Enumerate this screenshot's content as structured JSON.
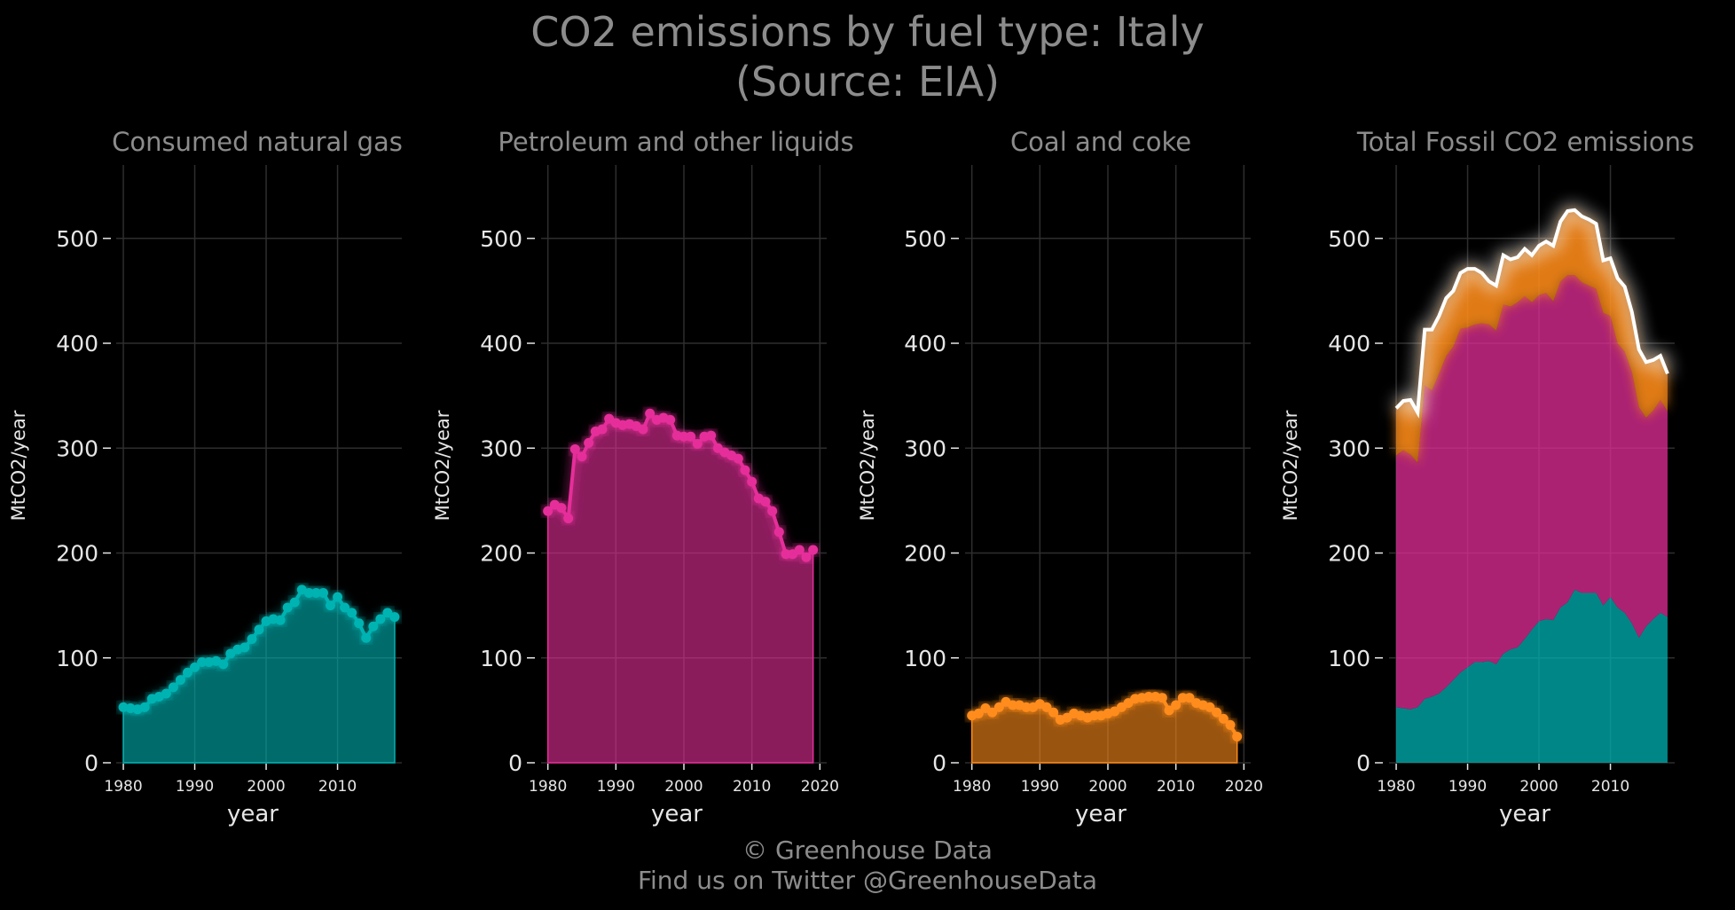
{
  "title_line1": "CO2 emissions by fuel type: Italy",
  "title_line2": "(Source: EIA)",
  "footer_line1": "© Greenhouse Data",
  "footer_line2": "Find us on Twitter @GreenhouseData",
  "colors": {
    "gas": "#00b3b3",
    "petroleum": "#e62e9a",
    "coal": "#ff8c1a",
    "total": "#ffffff",
    "grid": "#2e2e2e"
  },
  "chart_data": [
    {
      "type": "area",
      "title": "Consumed natural gas",
      "xlabel": "year",
      "ylabel": "MtCO2/year",
      "ylim": [
        0,
        570
      ],
      "xlim": [
        1979,
        2019
      ],
      "xticks": [
        1980,
        1990,
        2000,
        2010
      ],
      "yticks": [
        0,
        100,
        200,
        300,
        400,
        500
      ],
      "grid": true,
      "series": [
        {
          "x": [
            1980,
            1981,
            1982,
            1983,
            1984,
            1985,
            1986,
            1987,
            1988,
            1989,
            1990,
            1991,
            1992,
            1993,
            1994,
            1995,
            1996,
            1997,
            1998,
            1999,
            2000,
            2001,
            2002,
            2003,
            2004,
            2005,
            2006,
            2007,
            2008,
            2009,
            2010,
            2011,
            2012,
            2013,
            2014,
            2015,
            2016,
            2017,
            2018
          ],
          "y": [
            53,
            52,
            51,
            53,
            61,
            63,
            66,
            72,
            79,
            86,
            91,
            96,
            96,
            97,
            94,
            104,
            108,
            110,
            118,
            127,
            135,
            137,
            136,
            148,
            153,
            165,
            162,
            162,
            162,
            150,
            158,
            148,
            143,
            133,
            119,
            130,
            137,
            143,
            139
          ]
        }
      ]
    },
    {
      "type": "area",
      "title": "Petroleum and other liquids",
      "xlabel": "year",
      "ylabel": "MtCO2/year",
      "ylim": [
        0,
        570
      ],
      "xlim": [
        1979,
        2021
      ],
      "xticks": [
        1980,
        1990,
        2000,
        2010,
        2020
      ],
      "yticks": [
        0,
        100,
        200,
        300,
        400,
        500
      ],
      "grid": true,
      "series": [
        {
          "x": [
            1980,
            1981,
            1982,
            1983,
            1984,
            1985,
            1986,
            1987,
            1988,
            1989,
            1990,
            1991,
            1992,
            1993,
            1994,
            1995,
            1996,
            1997,
            1998,
            1999,
            2000,
            2001,
            2002,
            2003,
            2004,
            2005,
            2006,
            2007,
            2008,
            2009,
            2010,
            2011,
            2012,
            2013,
            2014,
            2015,
            2016,
            2017,
            2018,
            2019
          ],
          "y": [
            240,
            246,
            243,
            233,
            299,
            292,
            305,
            316,
            318,
            328,
            324,
            322,
            323,
            321,
            318,
            333,
            327,
            329,
            327,
            312,
            311,
            311,
            304,
            311,
            312,
            300,
            296,
            293,
            290,
            279,
            268,
            252,
            249,
            240,
            220,
            199,
            199,
            203,
            196,
            203
          ]
        }
      ]
    },
    {
      "type": "area",
      "title": "Coal and coke",
      "xlabel": "year",
      "ylabel": "MtCO2/year",
      "ylim": [
        0,
        570
      ],
      "xlim": [
        1979,
        2021
      ],
      "xticks": [
        1980,
        1990,
        2000,
        2010,
        2020
      ],
      "yticks": [
        0,
        100,
        200,
        300,
        400,
        500
      ],
      "grid": true,
      "series": [
        {
          "x": [
            1980,
            1981,
            1982,
            1983,
            1984,
            1985,
            1986,
            1987,
            1988,
            1989,
            1990,
            1991,
            1992,
            1993,
            1994,
            1995,
            1996,
            1997,
            1998,
            1999,
            2000,
            2001,
            2002,
            2003,
            2004,
            2005,
            2006,
            2007,
            2008,
            2009,
            2010,
            2011,
            2012,
            2013,
            2014,
            2015,
            2016,
            2017,
            2018,
            2019
          ],
          "y": [
            45,
            47,
            52,
            48,
            53,
            58,
            55,
            55,
            53,
            53,
            56,
            53,
            48,
            41,
            43,
            47,
            45,
            43,
            45,
            45,
            47,
            49,
            53,
            57,
            61,
            62,
            63,
            63,
            62,
            50,
            55,
            62,
            62,
            57,
            55,
            53,
            48,
            42,
            36,
            25
          ]
        }
      ]
    },
    {
      "type": "area",
      "title": "Total Fossil CO2 emissions",
      "xlabel": "year",
      "ylabel": "MtCO2/year",
      "ylim": [
        0,
        570
      ],
      "xlim": [
        1979,
        2019
      ],
      "xticks": [
        1980,
        1990,
        2000,
        2010
      ],
      "yticks": [
        0,
        100,
        200,
        300,
        400,
        500
      ],
      "grid": true,
      "stacked": true,
      "x": [
        1980,
        1981,
        1982,
        1983,
        1984,
        1985,
        1986,
        1987,
        1988,
        1989,
        1990,
        1991,
        1992,
        1993,
        1994,
        1995,
        1996,
        1997,
        1998,
        1999,
        2000,
        2001,
        2002,
        2003,
        2004,
        2005,
        2006,
        2007,
        2008,
        2009,
        2010,
        2011,
        2012,
        2013,
        2014,
        2015,
        2016,
        2017,
        2018
      ],
      "series": [
        {
          "name": "gas",
          "values": [
            53,
            52,
            51,
            53,
            61,
            63,
            66,
            72,
            79,
            86,
            91,
            96,
            96,
            97,
            94,
            104,
            108,
            110,
            118,
            127,
            135,
            137,
            136,
            148,
            153,
            165,
            162,
            162,
            162,
            150,
            158,
            148,
            143,
            133,
            119,
            130,
            137,
            143,
            139
          ]
        },
        {
          "name": "petroleum",
          "values": [
            240,
            246,
            243,
            233,
            299,
            292,
            305,
            316,
            318,
            328,
            324,
            322,
            323,
            321,
            318,
            333,
            327,
            329,
            327,
            312,
            311,
            311,
            304,
            311,
            312,
            300,
            296,
            293,
            290,
            279,
            268,
            252,
            249,
            240,
            220,
            199,
            199,
            203,
            196
          ]
        },
        {
          "name": "coal",
          "values": [
            45,
            47,
            52,
            48,
            53,
            58,
            55,
            55,
            53,
            53,
            56,
            53,
            48,
            41,
            43,
            47,
            45,
            43,
            45,
            45,
            47,
            49,
            53,
            57,
            61,
            62,
            63,
            63,
            62,
            50,
            55,
            62,
            62,
            57,
            55,
            53,
            48,
            42,
            36
          ]
        }
      ]
    }
  ]
}
